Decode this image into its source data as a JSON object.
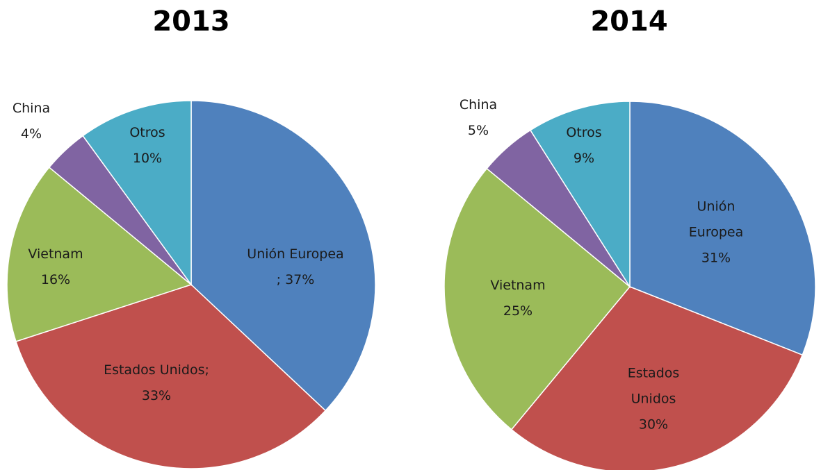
{
  "chart_data": [
    {
      "type": "pie",
      "title": "2013",
      "categories": [
        "Unión Europea",
        "Estados Unidos",
        "Vietnam",
        "China",
        "Otros"
      ],
      "values": [
        37,
        33,
        16,
        4,
        10
      ],
      "value_labels": [
        "; 37%",
        "; 33%",
        "16%",
        "4%",
        "10%"
      ],
      "colors": [
        "#4f81bd",
        "#c0504d",
        "#9bbb59",
        "#8064a2",
        "#4bacc6"
      ]
    },
    {
      "type": "pie",
      "title": "2014",
      "categories": [
        "Unión Europea",
        "Estados Unidos",
        "Vietnam",
        "China",
        "Otros"
      ],
      "values": [
        31,
        30,
        25,
        5,
        9
      ],
      "value_labels": [
        "31%",
        "30%",
        "25%",
        "5%",
        "9%"
      ],
      "colors": [
        "#4f81bd",
        "#c0504d",
        "#9bbb59",
        "#8064a2",
        "#4bacc6"
      ]
    }
  ]
}
